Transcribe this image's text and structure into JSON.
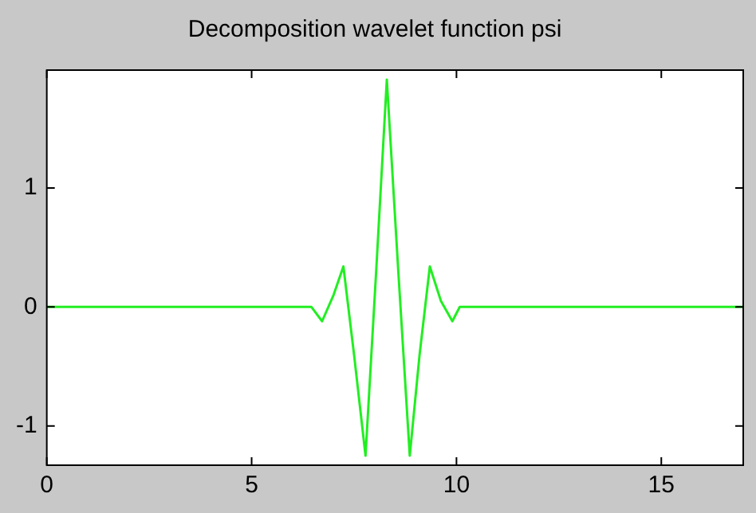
{
  "chart_data": {
    "type": "line",
    "title": "Decomposition wavelet function psi",
    "x": [
      0,
      6.46,
      6.72,
      7.0,
      7.24,
      7.5,
      7.78,
      8.04,
      8.3,
      8.58,
      8.86,
      9.1,
      9.35,
      9.62,
      9.9,
      10.08,
      17
    ],
    "series": [
      {
        "color": "#22ee22",
        "values": [
          0,
          0,
          -0.12,
          0.1,
          0.34,
          -0.4,
          -1.25,
          0.3,
          1.91,
          0.3,
          -1.25,
          -0.4,
          0.34,
          0.05,
          -0.12,
          0,
          0
        ]
      }
    ],
    "xlim": [
      0,
      17
    ],
    "xticks": [
      0,
      5,
      10,
      15
    ],
    "ylim": [
      -1.33,
      1.99
    ],
    "yticks": [
      -1,
      0,
      1
    ],
    "grid": false,
    "legend": false,
    "marker": "none",
    "line_style": "solid"
  }
}
